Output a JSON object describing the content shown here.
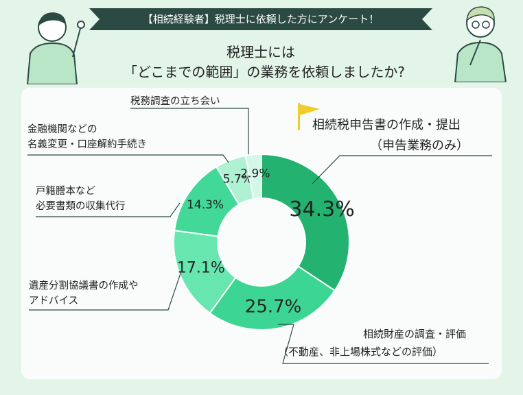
{
  "header": {
    "banner": "【相続経験者】税理士に依頼した方にアンケート！",
    "title_line1": "税理士には",
    "title_line2": "「どこまでの範囲」の業務を依頼しましたか?"
  },
  "colors": {
    "banner": "#2a4a43",
    "background": "#e3f5e8",
    "card": "#f9fcfa",
    "flag": "#f2cc2a",
    "slices": [
      "#23b26f",
      "#3dd593",
      "#68e6b0",
      "#42d898",
      "#aef2d3",
      "#d4f8e7"
    ]
  },
  "chart_data": {
    "type": "pie",
    "donut": true,
    "start": "top, clockwise",
    "categories": [
      [
        "相続税申告書の作成・提出",
        "（申告業務のみ）"
      ],
      [
        "相続財産の調査・評価",
        "（不動産、非上場株式などの評価）"
      ],
      [
        "遺産分割協議書の作成や",
        "アドバイス"
      ],
      [
        "戸籍謄本など",
        "必要書類の収集代行"
      ],
      [
        "金融機関などの",
        "名義変更・口座解約手続き"
      ],
      [
        "税務調査の立ち会い"
      ]
    ],
    "values": [
      34.3,
      25.7,
      17.1,
      14.3,
      5.7,
      2.9
    ],
    "labels": [
      "34.3%",
      "25.7%",
      "17.1%",
      "14.3%",
      "5.7%",
      "2.9%"
    ]
  }
}
